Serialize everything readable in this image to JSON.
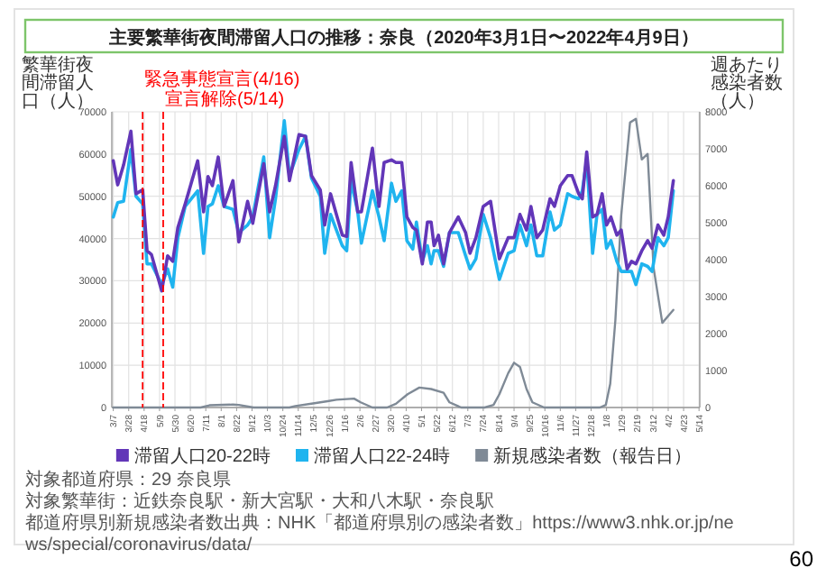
{
  "chart_data": {
    "type": "line",
    "title": "主要繁華街夜間滞留人口の推移：奈良（2020年3月1日〜2022年4月9日）",
    "ylabel": "繁華街夜間滞留人口（人）",
    "y2label": "週あたり感染者数（人）",
    "x": [
      "2020-03-07",
      "2020-03-13",
      "2020-03-21",
      "2020-03-31",
      "2020-04-07",
      "2020-04-16",
      "2020-04-22",
      "2020-04-28",
      "2020-05-12",
      "2020-05-20",
      "2020-05-27",
      "2020-06-03",
      "2020-06-13",
      "2020-06-30",
      "2020-07-08",
      "2020-07-14",
      "2020-07-20",
      "2020-07-28",
      "2020-08-05",
      "2020-08-17",
      "2020-08-25",
      "2020-09-06",
      "2020-09-13",
      "2020-09-28",
      "2020-10-06",
      "2020-10-14",
      "2020-10-26",
      "2020-11-02",
      "2020-11-15",
      "2020-11-24",
      "2020-12-02",
      "2020-12-14",
      "2020-12-20",
      "2020-12-28",
      "2021-01-13",
      "2021-01-19",
      "2021-01-25",
      "2021-02-03",
      "2021-02-08",
      "2021-02-23",
      "2021-03-04",
      "2021-03-11",
      "2021-03-21",
      "2021-03-27",
      "2021-04-04",
      "2021-04-11",
      "2021-04-19",
      "2021-04-24",
      "2021-05-02",
      "2021-05-09",
      "2021-05-14",
      "2021-05-18",
      "2021-05-24",
      "2021-05-31",
      "2021-06-08",
      "2021-06-20",
      "2021-06-30",
      "2021-07-06",
      "2021-07-14",
      "2021-07-24",
      "2021-08-03",
      "2021-08-15",
      "2021-08-27",
      "2021-09-04",
      "2021-09-12",
      "2021-09-21",
      "2021-09-27",
      "2021-10-05",
      "2021-10-13",
      "2021-10-23",
      "2021-10-29",
      "2021-11-06",
      "2021-11-16",
      "2021-11-22",
      "2021-12-01",
      "2021-12-06",
      "2021-12-12",
      "2021-12-20",
      "2021-12-26",
      "2022-01-02",
      "2022-01-08",
      "2022-01-14",
      "2022-01-22",
      "2022-01-28",
      "2022-02-05",
      "2022-02-11",
      "2022-02-17",
      "2022-02-25",
      "2022-03-05",
      "2022-03-11",
      "2022-03-19",
      "2022-03-27",
      "2022-04-02",
      "2022-04-09"
    ],
    "series": [
      {
        "name": "滞留人口20-22時",
        "color": "#6236b8",
        "values": [
          58400,
          52700,
          57400,
          65400,
          50600,
          51500,
          37100,
          36200,
          27600,
          35900,
          34600,
          42600,
          48200,
          58400,
          46300,
          54700,
          52500,
          59300,
          47600,
          53700,
          39200,
          48800,
          43600,
          57700,
          46300,
          52500,
          64200,
          53700,
          64600,
          64200,
          54900,
          51500,
          43200,
          50600,
          40800,
          40500,
          58000,
          46300,
          46300,
          61400,
          47600,
          58000,
          58600,
          58000,
          58000,
          45100,
          42600,
          42000,
          34000,
          43900,
          43900,
          38300,
          40800,
          34000,
          41400,
          45100,
          41400,
          36500,
          40200,
          47600,
          48800,
          35200,
          40200,
          40200,
          45700,
          42000,
          47600,
          40200,
          42000,
          49400,
          47600,
          52500,
          54900,
          54900,
          50600,
          49400,
          60500,
          45100,
          45700,
          50600,
          43200,
          45100,
          40800,
          42000,
          32800,
          34600,
          34000,
          37100,
          39500,
          37700,
          43200,
          40800,
          45100,
          53700
        ]
      },
      {
        "name": "滞留人口22-24時",
        "color": "#1fb4ef",
        "values": [
          45100,
          48500,
          48800,
          61100,
          50000,
          48200,
          34000,
          34000,
          29100,
          32800,
          28500,
          40200,
          47600,
          51300,
          36500,
          47600,
          48200,
          52500,
          47600,
          46900,
          41400,
          43200,
          45100,
          59300,
          40200,
          49400,
          67900,
          54900,
          61100,
          64200,
          54300,
          50000,
          36500,
          45700,
          38300,
          37100,
          53700,
          46300,
          38900,
          51300,
          45100,
          39500,
          53100,
          48800,
          51300,
          39500,
          37500,
          43900,
          34600,
          38300,
          34000,
          37100,
          37100,
          33400,
          41400,
          41400,
          35900,
          32800,
          35200,
          45700,
          40200,
          30300,
          36500,
          37100,
          43200,
          38300,
          43200,
          35900,
          35900,
          46300,
          42000,
          43200,
          50600,
          50000,
          49400,
          51300,
          58600,
          36500,
          45700,
          46900,
          37700,
          39500,
          34600,
          32200,
          32200,
          32200,
          29100,
          34000,
          33400,
          32200,
          40200,
          38300,
          40200,
          51300
        ]
      },
      {
        "name": "新規感染者数（報告日）",
        "color": "#7f8a96",
        "axis": "y2",
        "x": [
          "2020-03-07",
          "2020-07-04",
          "2020-07-16",
          "2020-08-17",
          "2020-08-25",
          "2020-09-14",
          "2020-11-02",
          "2020-11-10",
          "2020-12-04",
          "2020-12-24",
          "2021-01-05",
          "2021-01-29",
          "2021-02-07",
          "2021-02-23",
          "2021-03-15",
          "2021-03-27",
          "2021-04-12",
          "2021-04-28",
          "2021-05-14",
          "2021-05-31",
          "2021-06-08",
          "2021-06-24",
          "2021-07-26",
          "2021-08-07",
          "2021-08-15",
          "2021-08-27",
          "2021-09-04",
          "2021-09-12",
          "2021-09-21",
          "2021-09-29",
          "2021-10-15",
          "2021-12-30",
          "2022-01-07",
          "2022-01-13",
          "2022-01-20",
          "2022-01-28",
          "2022-02-09",
          "2022-02-17",
          "2022-02-25",
          "2022-03-05",
          "2022-03-13",
          "2022-03-25",
          "2022-04-09"
        ],
        "values": [
          0,
          0,
          60,
          80,
          70,
          0,
          0,
          40,
          110,
          170,
          210,
          240,
          140,
          0,
          0,
          100,
          360,
          540,
          500,
          400,
          140,
          0,
          0,
          70,
          360,
          930,
          1210,
          1100,
          500,
          140,
          0,
          0,
          70,
          640,
          2360,
          5210,
          7710,
          7810,
          6710,
          6860,
          3790,
          2290,
          2640
        ]
      }
    ],
    "xlim": [
      "2020-03-05",
      "2022-05-15"
    ],
    "xticks": [
      {
        "value": "2020-03-07",
        "label": "3/7"
      },
      {
        "value": "2020-03-28",
        "label": "3/28"
      },
      {
        "value": "2020-04-18",
        "label": "4/18"
      },
      {
        "value": "2020-05-09",
        "label": "5/9"
      },
      {
        "value": "2020-05-30",
        "label": "5/30"
      },
      {
        "value": "2020-06-20",
        "label": "6/20"
      },
      {
        "value": "2020-07-11",
        "label": "7/11"
      },
      {
        "value": "2020-08-01",
        "label": "8/1"
      },
      {
        "value": "2020-08-22",
        "label": "8/22"
      },
      {
        "value": "2020-09-12",
        "label": "9/12"
      },
      {
        "value": "2020-10-03",
        "label": "10/3"
      },
      {
        "value": "2020-10-24",
        "label": "10/24"
      },
      {
        "value": "2020-11-14",
        "label": "11/14"
      },
      {
        "value": "2020-12-05",
        "label": "12/5"
      },
      {
        "value": "2020-12-26",
        "label": "12/26"
      },
      {
        "value": "2021-01-16",
        "label": "1/16"
      },
      {
        "value": "2021-02-06",
        "label": "2/6"
      },
      {
        "value": "2021-02-27",
        "label": "2/27"
      },
      {
        "value": "2021-03-20",
        "label": "3/20"
      },
      {
        "value": "2021-04-10",
        "label": "4/10"
      },
      {
        "value": "2021-05-01",
        "label": "5/1"
      },
      {
        "value": "2021-05-22",
        "label": "5/22"
      },
      {
        "value": "2021-06-12",
        "label": "6/12"
      },
      {
        "value": "2021-07-03",
        "label": "7/3"
      },
      {
        "value": "2021-07-24",
        "label": "7/24"
      },
      {
        "value": "2021-08-14",
        "label": "8/14"
      },
      {
        "value": "2021-09-04",
        "label": "9/4"
      },
      {
        "value": "2021-09-25",
        "label": "9/25"
      },
      {
        "value": "2021-10-16",
        "label": "10/16"
      },
      {
        "value": "2021-11-06",
        "label": "11/6"
      },
      {
        "value": "2021-11-27",
        "label": "11/27"
      },
      {
        "value": "2021-12-18",
        "label": "12/18"
      },
      {
        "value": "2022-01-08",
        "label": "1/8"
      },
      {
        "value": "2022-01-29",
        "label": "1/29"
      },
      {
        "value": "2022-02-19",
        "label": "2/19"
      },
      {
        "value": "2022-03-12",
        "label": "3/12"
      },
      {
        "value": "2022-04-02",
        "label": "4/2"
      },
      {
        "value": "2022-04-23",
        "label": "4/23"
      },
      {
        "value": "2022-05-14",
        "label": "5/14"
      }
    ],
    "ylim": [
      0,
      70000
    ],
    "yticks": [
      0,
      10000,
      20000,
      30000,
      40000,
      50000,
      60000,
      70000
    ],
    "y2lim": [
      0,
      8000
    ],
    "y2ticks": [
      0,
      1000,
      2000,
      3000,
      4000,
      5000,
      6000,
      7000,
      8000
    ],
    "ref_lines": [
      {
        "axis": "x",
        "value": "2020-04-16",
        "label": "緊急事態宣言(4/16)",
        "color": "#ff0000",
        "line_style": "dashed"
      },
      {
        "axis": "x",
        "value": "2020-05-14",
        "label": "宣言解除(5/14)",
        "color": "#ff0000",
        "line_style": "dashed"
      }
    ],
    "annotations": [
      "対象都道府県：29 奈良県",
      "対象繁華街：近鉄奈良駅・新大宮駅・大和八木駅・奈良駅",
      "都道府県別新規感染者数出典：NHK「都道府県別の感染者数」https://www3.nhk.or.jp/news/special/coronavirus/data/",
      "60"
    ],
    "grid": true,
    "legend": "bottom"
  }
}
